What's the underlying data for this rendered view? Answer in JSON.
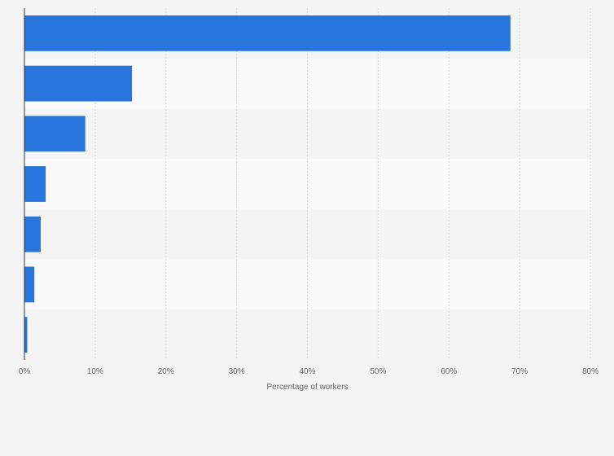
{
  "chart_data": {
    "type": "bar",
    "orientation": "horizontal",
    "title": "",
    "xlabel": "Percentage of workers",
    "ylabel": "",
    "categories": [
      "",
      "",
      "",
      "",
      "",
      "",
      ""
    ],
    "values": [
      68.7,
      15.2,
      8.6,
      3.0,
      2.3,
      1.4,
      0.4
    ],
    "xlim": [
      0,
      80
    ],
    "xticks": [
      0,
      10,
      20,
      30,
      40,
      50,
      60,
      70,
      80
    ],
    "xtick_labels": [
      "0%",
      "10%",
      "20%",
      "30%",
      "40%",
      "50%",
      "60%",
      "70%",
      "80%"
    ],
    "grid": "vertical dashed",
    "legend": "none",
    "colors": {
      "bar": "#2876dd",
      "band_light": "#fafafa",
      "band_dark": "#f4f4f4",
      "grid": "#d8d8d8",
      "axis": "#333333"
    }
  }
}
